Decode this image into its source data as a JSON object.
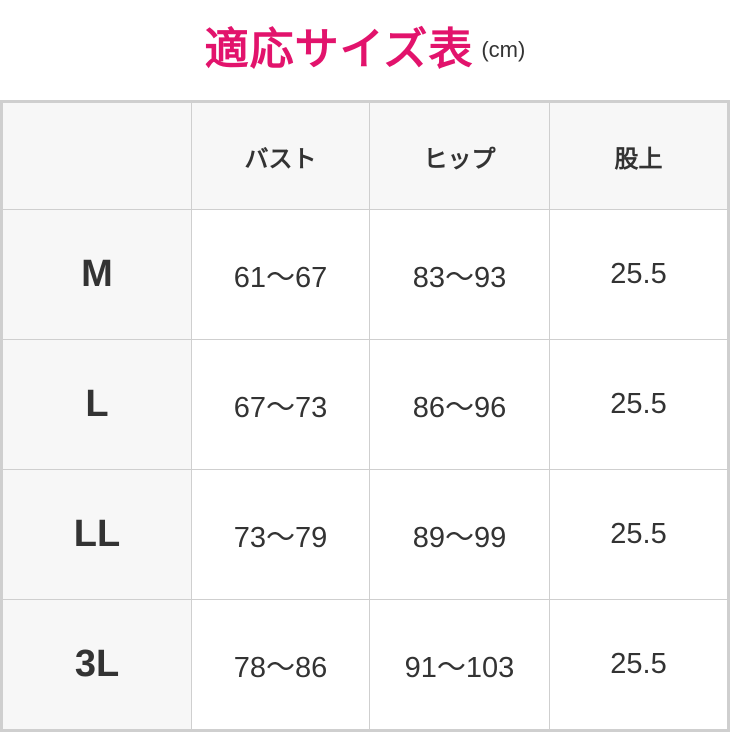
{
  "title": {
    "main": "適応サイズ表",
    "unit": "(cm)",
    "color": "#e2136c"
  },
  "table": {
    "headers": [
      "",
      "バスト",
      "ヒップ",
      "股上"
    ],
    "rows": [
      {
        "size": "M",
        "bust": "61〜67",
        "hip": "83〜93",
        "rise": "25.5"
      },
      {
        "size": "L",
        "bust": "67〜73",
        "hip": "86〜96",
        "rise": "25.5"
      },
      {
        "size": "LL",
        "bust": "73〜79",
        "hip": "89〜99",
        "rise": "25.5"
      },
      {
        "size": "3L",
        "bust": "78〜86",
        "hip": "91〜103",
        "rise": "25.5"
      }
    ]
  }
}
